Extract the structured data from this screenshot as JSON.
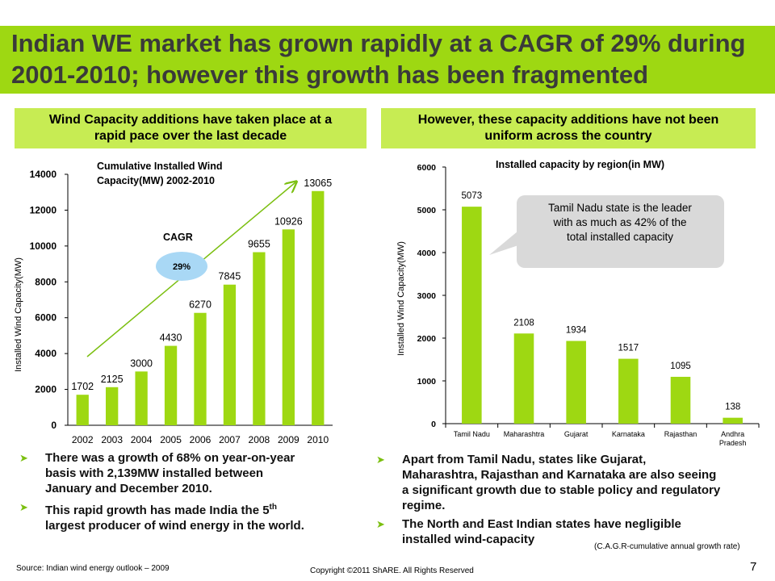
{
  "header": {
    "title_line1": "Indian WE market has grown rapidly at a CAGR of 29% during",
    "title_line2": "2001-2010; however this growth has been fragmented"
  },
  "left_panel": {
    "heading_line1": "Wind Capacity additions have taken place at a",
    "heading_line2": "rapid pace over the last decade",
    "bullets": [
      {
        "line1": "There was a growth of 68% on year-on-year",
        "line2": "basis with 2,139MW installed between",
        "line3": "January and December  2010."
      },
      {
        "line1_pre": "This rapid growth has made India the 5",
        "sup": "th",
        "line2": "largest producer  of wind energy in the world."
      }
    ]
  },
  "right_panel": {
    "heading_line1": "However, these capacity additions have not been",
    "heading_line2": "uniform across the country",
    "callout_line1": "Tamil Nadu state is the leader",
    "callout_line2": "with as much as 42% of the",
    "callout_line3": "total installed capacity",
    "bullets": [
      {
        "line1": "Apart from Tamil Nadu,  states like Gujarat,",
        "line2": "Maharashtra,  Rajasthan  and Karnataka  are also seeing",
        "line3": "a significant  growth due to stable policy and regulatory",
        "line4": "regime."
      },
      {
        "line1": "The North and East Indian states have negligible",
        "line2": "installed wind-capacity"
      }
    ]
  },
  "footer": {
    "source": "Source: Indian wind energy outlook – 2009",
    "copyright": "Copyright ©2011 ShARE. All Rights Reserved",
    "page_number": "7",
    "cagr_note": "(C.A.G.R-cumulative annual growth rate)"
  },
  "colors": {
    "accent": "#9ed812",
    "bar": "#9ed812",
    "heading_bg": "#c7ec53",
    "callout_bg": "#d9d9d9",
    "bubble": "#a9d8f5"
  },
  "chart_data": [
    {
      "type": "bar",
      "title_line1": "Cumulative Installed Wind",
      "title_line2": "Capacity(MW) 2002-2010",
      "ylabel": "Installed Wind Capacity(MW)",
      "categories": [
        "2002",
        "2003",
        "2004",
        "2005",
        "2006",
        "2007",
        "2008",
        "2009",
        "2010"
      ],
      "values": [
        1702,
        2125,
        3000,
        4430,
        6270,
        7845,
        9655,
        10926,
        13065
      ],
      "ylim": [
        0,
        14000
      ],
      "yticks": [
        0,
        2000,
        4000,
        6000,
        8000,
        10000,
        12000,
        14000
      ],
      "annotation": "CAGR",
      "bubble_label": "29%",
      "grid": false
    },
    {
      "type": "bar",
      "title": "Installed capacity by region(in MW)",
      "ylabel": "Installed Wind  Capacity(MW)",
      "categories": [
        {
          "line1": "Tamil Nadu",
          "line2": ""
        },
        {
          "line1": "Maharashtra",
          "line2": ""
        },
        {
          "line1": "Gujarat",
          "line2": ""
        },
        {
          "line1": "Karnataka",
          "line2": ""
        },
        {
          "line1": "Rajasthan",
          "line2": ""
        },
        {
          "line1": "Andhra",
          "line2": "Pradesh"
        }
      ],
      "values": [
        5073,
        2108,
        1934,
        1517,
        1095,
        138
      ],
      "ylim": [
        0,
        6000
      ],
      "yticks": [
        0,
        1000,
        2000,
        3000,
        4000,
        5000,
        6000
      ],
      "grid": false
    }
  ]
}
